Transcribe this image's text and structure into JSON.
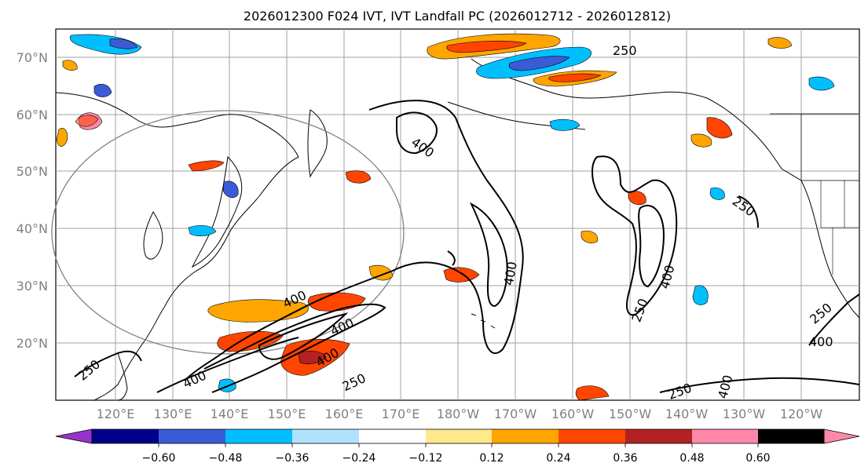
{
  "title": "2026012300 F024 IVT, IVT Landfall PC (2026012712 - 2026012812)",
  "map": {
    "lat_ticks": [
      "70°N",
      "60°N",
      "50°N",
      "40°N",
      "30°N",
      "20°N"
    ],
    "lon_ticks": [
      "120°E",
      "130°E",
      "140°E",
      "150°E",
      "160°E",
      "170°E",
      "180°W",
      "170°W",
      "160°W",
      "150°W",
      "140°W",
      "130°W",
      "120°W"
    ],
    "contour_labels": [
      "250",
      "400",
      "250",
      "400",
      "400",
      "400",
      "400",
      "250",
      "400",
      "250",
      "400",
      "250",
      "400",
      "250",
      "400",
      "250",
      "250"
    ],
    "colors": {
      "land_outline": "#000000",
      "grid": "#a0a0a0",
      "ellipse": "#808080",
      "contour": "#000000"
    }
  },
  "colorbar": {
    "ticks": [
      "−0.60",
      "−0.48",
      "−0.36",
      "−0.24",
      "−0.12",
      "0.12",
      "0.24",
      "0.36",
      "0.48",
      "0.60"
    ],
    "colors": [
      "#9932cc",
      "#00008b",
      "#3b5bd6",
      "#00bfff",
      "#b0e2ff",
      "#ffffff",
      "#ffe98a",
      "#ffa500",
      "#ff4500",
      "#b22222",
      "#ff88aa"
    ]
  }
}
